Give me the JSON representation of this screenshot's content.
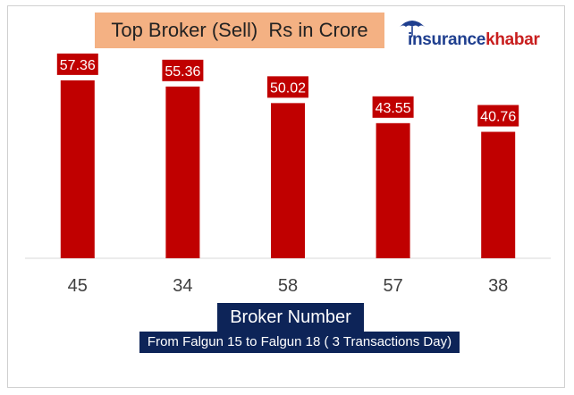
{
  "chart_data": {
    "type": "bar",
    "title": "Top Broker (Sell)  Rs in Crore",
    "categories": [
      "45",
      "34",
      "58",
      "57",
      "38"
    ],
    "values": [
      57.36,
      55.36,
      50.02,
      43.55,
      40.76
    ],
    "value_labels": [
      "57.36",
      "55.36",
      "50.02",
      "43.55",
      "40.76"
    ],
    "xlabel": "Broker Number",
    "subtitle": "From Falgun 15 to Falgun 18 ( 3 Transactions Day)",
    "ylabel": "",
    "ylim": [
      0,
      70
    ],
    "grid": false,
    "bar_color": "#c00000",
    "label_bg_color": "#c00000",
    "label_text_color": "#ffffff"
  },
  "logo": {
    "part1": "insurance",
    "part2": "khabar",
    "color1": "#1f3f8f",
    "color2": "#c81e1e"
  }
}
